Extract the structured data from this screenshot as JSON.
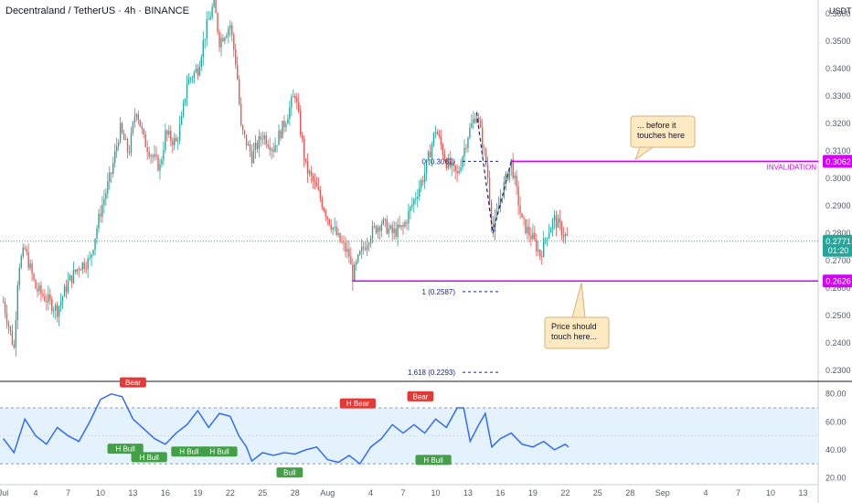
{
  "header": {
    "title": "Decentraland / TetherUS · 4h · BINANCE",
    "currency": "USDT"
  },
  "colors": {
    "up": "#26a69a",
    "down": "#ef5350",
    "level": "#e040fb",
    "invalidation": "#d500f9",
    "price_tag": "#26a69a",
    "level_tag": "#d500f9",
    "fib": "#1a237e",
    "rsi": "#2962ff",
    "rsi_band": "#e3f2fd",
    "bull": "#43a047",
    "bear": "#e53935",
    "note_bg": "#fde9c2",
    "note_border": "#d8b27a"
  },
  "chart_data": {
    "type": "candlestick",
    "price_axis": {
      "ylim": [
        0.226,
        0.365
      ],
      "ticks": [
        0.23,
        0.24,
        0.25,
        0.26,
        0.27,
        0.28,
        0.29,
        0.3,
        0.31,
        0.32,
        0.33,
        0.34,
        0.35,
        0.36
      ],
      "tick_labels": [
        "0.2300",
        "0.2400",
        "0.2500",
        "0.2600",
        "0.2700",
        "0.2800",
        "0.2900",
        "0.3000",
        "0.3100",
        "0.3200",
        "0.3300",
        "0.3400",
        "0.3500",
        "0.3600"
      ]
    },
    "time_axis": {
      "labels": [
        "Jul",
        "4",
        "7",
        "10",
        "13",
        "16",
        "19",
        "22",
        "25",
        "28",
        "Aug",
        "4",
        "7",
        "10",
        "13",
        "16",
        "19",
        "22",
        "25",
        "28",
        "Sep",
        "4",
        "7",
        "10",
        "13"
      ],
      "label_day_index": [
        0,
        3,
        6,
        9,
        12,
        15,
        18,
        21,
        24,
        27,
        30,
        34,
        37,
        40,
        43,
        46,
        49,
        52,
        55,
        58,
        61,
        65,
        68,
        71,
        74
      ],
      "day_range": [
        -0.3,
        75.4
      ]
    },
    "price_path": [
      [
        0,
        0.255
      ],
      [
        1,
        0.238
      ],
      [
        1.4,
        0.268
      ],
      [
        2,
        0.274
      ],
      [
        3,
        0.26
      ],
      [
        4,
        0.256
      ],
      [
        5,
        0.252
      ],
      [
        6,
        0.262
      ],
      [
        7,
        0.268
      ],
      [
        8,
        0.27
      ],
      [
        9,
        0.288
      ],
      [
        10,
        0.302
      ],
      [
        10.8,
        0.318
      ],
      [
        11.6,
        0.309
      ],
      [
        12.3,
        0.326
      ],
      [
        13,
        0.314
      ],
      [
        13.8,
        0.308
      ],
      [
        14.5,
        0.304
      ],
      [
        15,
        0.316
      ],
      [
        16,
        0.313
      ],
      [
        16.5,
        0.321
      ],
      [
        17,
        0.335
      ],
      [
        18,
        0.34
      ],
      [
        18.8,
        0.355
      ],
      [
        19.5,
        0.364
      ],
      [
        20,
        0.35
      ],
      [
        21,
        0.356
      ],
      [
        21.6,
        0.34
      ],
      [
        22,
        0.318
      ],
      [
        23,
        0.308
      ],
      [
        24,
        0.316
      ],
      [
        25,
        0.311
      ],
      [
        26,
        0.32
      ],
      [
        27,
        0.331
      ],
      [
        28,
        0.304
      ],
      [
        29,
        0.296
      ],
      [
        30,
        0.286
      ],
      [
        31,
        0.278
      ],
      [
        32,
        0.272
      ],
      [
        32.3,
        0.264
      ],
      [
        33,
        0.272
      ],
      [
        34,
        0.28
      ],
      [
        35,
        0.284
      ],
      [
        36,
        0.28
      ],
      [
        37,
        0.282
      ],
      [
        38,
        0.292
      ],
      [
        39,
        0.302
      ],
      [
        40,
        0.318
      ],
      [
        41,
        0.306
      ],
      [
        42,
        0.301
      ],
      [
        43,
        0.316
      ],
      [
        43.8,
        0.324
      ],
      [
        44.2,
        0.316
      ],
      [
        44.8,
        0.302
      ],
      [
        45.3,
        0.28
      ],
      [
        46,
        0.293
      ],
      [
        47,
        0.306
      ],
      [
        48,
        0.284
      ],
      [
        49,
        0.278
      ],
      [
        49.7,
        0.272
      ],
      [
        50.3,
        0.28
      ],
      [
        51,
        0.285
      ],
      [
        52,
        0.279
      ],
      [
        52.3,
        0.278
      ]
    ],
    "current_price": "0.2771",
    "countdown": "01:20",
    "levels": [
      {
        "name": "INVALIDATION",
        "value": 0.3062,
        "label": "0.3062",
        "start_day": 47
      },
      {
        "name": "",
        "value": 0.2626,
        "label": "0.2626",
        "start_day": 32.3
      }
    ],
    "fibonacci": [
      {
        "label": "0 (0.3062)",
        "value": 0.3062
      },
      {
        "label": "1 (0.2587)",
        "value": 0.2587
      },
      {
        "label": "1.618 (0.2293)",
        "value": 0.2293
      }
    ],
    "annotations": [
      {
        "text_lines": [
          "... before it",
          "touches here"
        ],
        "anchor_day": 58.5,
        "anchor_value": 0.3062
      },
      {
        "text_lines": [
          "Price should",
          "touch here..."
        ],
        "anchor_day": 53.5,
        "anchor_value": 0.2626
      }
    ],
    "rsi": {
      "ylim": [
        17,
        87
      ],
      "ticks": [
        20,
        40,
        60,
        80
      ],
      "tick_labels": [
        "20.00",
        "40.00",
        "60.00",
        "80.00"
      ],
      "band": [
        30,
        70
      ],
      "path": [
        [
          0,
          48
        ],
        [
          1,
          38
        ],
        [
          2,
          62
        ],
        [
          3,
          50
        ],
        [
          4,
          44
        ],
        [
          5,
          56
        ],
        [
          6,
          50
        ],
        [
          7,
          46
        ],
        [
          8,
          60
        ],
        [
          9,
          76
        ],
        [
          10,
          80
        ],
        [
          11,
          78
        ],
        [
          12,
          62
        ],
        [
          13,
          55
        ],
        [
          14,
          48
        ],
        [
          15,
          44
        ],
        [
          16,
          52
        ],
        [
          17,
          58
        ],
        [
          18,
          68
        ],
        [
          19,
          56
        ],
        [
          20,
          66
        ],
        [
          21,
          64
        ],
        [
          21.8,
          50
        ],
        [
          22.5,
          42
        ],
        [
          23,
          32
        ],
        [
          24,
          38
        ],
        [
          25,
          36
        ],
        [
          26,
          38
        ],
        [
          27,
          37
        ],
        [
          28,
          40
        ],
        [
          29,
          42
        ],
        [
          30,
          33
        ],
        [
          31,
          31
        ],
        [
          32,
          36
        ],
        [
          33,
          30
        ],
        [
          34,
          42
        ],
        [
          35,
          48
        ],
        [
          36,
          58
        ],
        [
          37,
          52
        ],
        [
          38,
          58
        ],
        [
          39,
          52
        ],
        [
          40,
          62
        ],
        [
          41,
          56
        ],
        [
          42,
          70
        ],
        [
          42.6,
          70
        ],
        [
          43.2,
          46
        ],
        [
          44,
          58
        ],
        [
          44.6,
          66
        ],
        [
          45.2,
          42
        ],
        [
          46,
          48
        ],
        [
          47,
          52
        ],
        [
          48,
          44
        ],
        [
          49,
          42
        ],
        [
          50,
          46
        ],
        [
          51,
          40
        ],
        [
          52,
          44
        ],
        [
          52.3,
          42
        ]
      ],
      "labels": [
        {
          "text": "Bear",
          "day": 12.0,
          "value": 82,
          "kind": "bear",
          "pos": "above"
        },
        {
          "text": "H Bull",
          "day": 11.3,
          "value": 47,
          "kind": "bull",
          "pos": "below"
        },
        {
          "text": "H Bull",
          "day": 13.5,
          "value": 41,
          "kind": "bull",
          "pos": "below"
        },
        {
          "text": "H Bull",
          "day": 17.2,
          "value": 45,
          "kind": "bull",
          "pos": "below"
        },
        {
          "text": "H Bull",
          "day": 20.0,
          "value": 45,
          "kind": "bull",
          "pos": "below"
        },
        {
          "text": "Bull",
          "day": 26.5,
          "value": 30,
          "kind": "bull",
          "pos": "below"
        },
        {
          "text": "H Bear",
          "day": 32.8,
          "value": 67,
          "kind": "bear",
          "pos": "above"
        },
        {
          "text": "Bear",
          "day": 38.6,
          "value": 72,
          "kind": "bear",
          "pos": "above"
        },
        {
          "text": "H Bull",
          "day": 39.8,
          "value": 39,
          "kind": "bull",
          "pos": "below"
        }
      ]
    }
  }
}
